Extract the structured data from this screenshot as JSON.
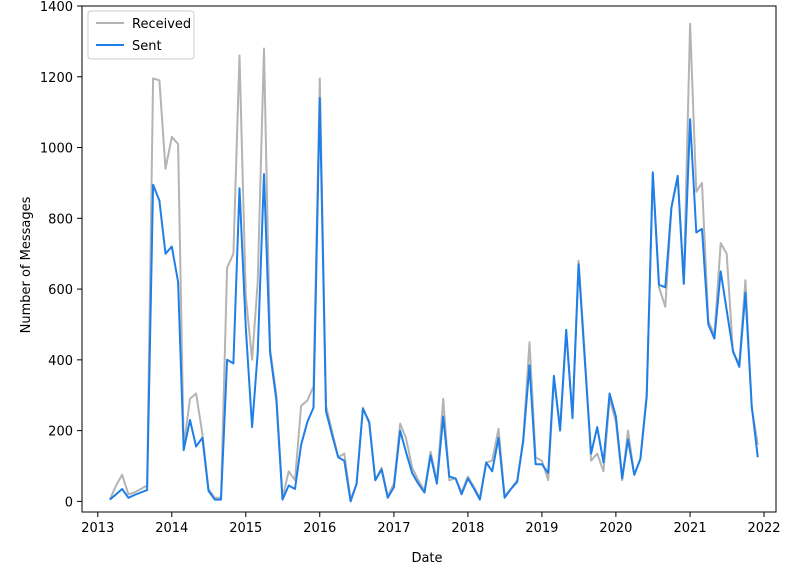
{
  "chart_data": {
    "type": "line",
    "xlabel": "Date",
    "ylabel": "Number of Messages",
    "xlim": [
      "2012-10-15",
      "2022-03-01"
    ],
    "ylim": [
      -30,
      1400
    ],
    "x_ticks": [
      "2013",
      "2014",
      "2015",
      "2016",
      "2017",
      "2018",
      "2019",
      "2020",
      "2021",
      "2022"
    ],
    "y_ticks": [
      0,
      200,
      400,
      600,
      800,
      1000,
      1200,
      1400
    ],
    "grid": false,
    "legend_position": "top-left",
    "colors": {
      "Received": "#b4b4b4",
      "Sent": "#1f7fe8"
    },
    "series": [
      {
        "name": "Received",
        "points": [
          [
            "2013-03-01",
            5
          ],
          [
            "2013-04-01",
            45
          ],
          [
            "2013-05-01",
            75
          ],
          [
            "2013-06-01",
            20
          ],
          [
            "2013-07-01",
            25
          ],
          [
            "2013-08-01",
            35
          ],
          [
            "2013-09-01",
            45
          ],
          [
            "2013-10-01",
            1195
          ],
          [
            "2013-11-01",
            1190
          ],
          [
            "2013-12-01",
            940
          ],
          [
            "2014-01-01",
            1030
          ],
          [
            "2014-02-01",
            1010
          ],
          [
            "2014-03-01",
            155
          ],
          [
            "2014-04-01",
            290
          ],
          [
            "2014-05-01",
            305
          ],
          [
            "2014-06-01",
            190
          ],
          [
            "2014-07-01",
            35
          ],
          [
            "2014-08-01",
            10
          ],
          [
            "2014-09-01",
            10
          ],
          [
            "2014-10-01",
            660
          ],
          [
            "2014-11-01",
            700
          ],
          [
            "2014-12-01",
            1260
          ],
          [
            "2015-01-01",
            580
          ],
          [
            "2015-02-01",
            400
          ],
          [
            "2015-03-01",
            620
          ],
          [
            "2015-04-01",
            1280
          ],
          [
            "2015-05-01",
            430
          ],
          [
            "2015-06-01",
            300
          ],
          [
            "2015-07-01",
            10
          ],
          [
            "2015-08-01",
            85
          ],
          [
            "2015-09-01",
            60
          ],
          [
            "2015-10-01",
            270
          ],
          [
            "2015-11-01",
            285
          ],
          [
            "2015-12-01",
            325
          ],
          [
            "2016-01-01",
            1195
          ],
          [
            "2016-02-01",
            270
          ],
          [
            "2016-03-01",
            200
          ],
          [
            "2016-04-01",
            125
          ],
          [
            "2016-05-01",
            135
          ],
          [
            "2016-06-01",
            5
          ],
          [
            "2016-07-01",
            50
          ],
          [
            "2016-08-01",
            265
          ],
          [
            "2016-09-01",
            220
          ],
          [
            "2016-10-01",
            60
          ],
          [
            "2016-11-01",
            95
          ],
          [
            "2016-12-01",
            15
          ],
          [
            "2017-01-01",
            50
          ],
          [
            "2017-02-01",
            220
          ],
          [
            "2017-03-01",
            180
          ],
          [
            "2017-04-01",
            95
          ],
          [
            "2017-05-01",
            60
          ],
          [
            "2017-06-01",
            30
          ],
          [
            "2017-07-01",
            140
          ],
          [
            "2017-08-01",
            55
          ],
          [
            "2017-09-01",
            290
          ],
          [
            "2017-10-01",
            60
          ],
          [
            "2017-11-01",
            65
          ],
          [
            "2017-12-01",
            25
          ],
          [
            "2018-01-01",
            70
          ],
          [
            "2018-02-01",
            40
          ],
          [
            "2018-03-01",
            10
          ],
          [
            "2018-04-01",
            110
          ],
          [
            "2018-05-01",
            115
          ],
          [
            "2018-06-01",
            205
          ],
          [
            "2018-07-01",
            15
          ],
          [
            "2018-08-01",
            35
          ],
          [
            "2018-09-01",
            60
          ],
          [
            "2018-10-01",
            175
          ],
          [
            "2018-11-01",
            450
          ],
          [
            "2018-12-01",
            125
          ],
          [
            "2019-01-01",
            115
          ],
          [
            "2019-02-01",
            60
          ],
          [
            "2019-03-01",
            345
          ],
          [
            "2019-04-01",
            210
          ],
          [
            "2019-05-01",
            480
          ],
          [
            "2019-06-01",
            245
          ],
          [
            "2019-07-01",
            680
          ],
          [
            "2019-08-01",
            410
          ],
          [
            "2019-09-01",
            115
          ],
          [
            "2019-10-01",
            135
          ],
          [
            "2019-11-01",
            85
          ],
          [
            "2019-12-01",
            290
          ],
          [
            "2020-01-01",
            225
          ],
          [
            "2020-02-01",
            60
          ],
          [
            "2020-03-01",
            200
          ],
          [
            "2020-04-01",
            75
          ],
          [
            "2020-05-01",
            120
          ],
          [
            "2020-06-01",
            305
          ],
          [
            "2020-07-01",
            925
          ],
          [
            "2020-08-01",
            605
          ],
          [
            "2020-09-01",
            550
          ],
          [
            "2020-10-01",
            830
          ],
          [
            "2020-11-01",
            915
          ],
          [
            "2020-12-01",
            615
          ],
          [
            "2021-01-01",
            1350
          ],
          [
            "2021-02-01",
            875
          ],
          [
            "2021-03-01",
            900
          ],
          [
            "2021-04-01",
            510
          ],
          [
            "2021-05-01",
            470
          ],
          [
            "2021-06-01",
            730
          ],
          [
            "2021-07-01",
            700
          ],
          [
            "2021-08-01",
            420
          ],
          [
            "2021-09-01",
            390
          ],
          [
            "2021-10-01",
            625
          ],
          [
            "2021-11-01",
            265
          ],
          [
            "2021-12-01",
            160
          ]
        ]
      },
      {
        "name": "Sent",
        "points": [
          [
            "2013-03-01",
            5
          ],
          [
            "2013-04-01",
            20
          ],
          [
            "2013-05-01",
            35
          ],
          [
            "2013-06-01",
            10
          ],
          [
            "2013-07-01",
            18
          ],
          [
            "2013-08-01",
            25
          ],
          [
            "2013-09-01",
            32
          ],
          [
            "2013-10-01",
            895
          ],
          [
            "2013-11-01",
            850
          ],
          [
            "2013-12-01",
            700
          ],
          [
            "2014-01-01",
            720
          ],
          [
            "2014-02-01",
            620
          ],
          [
            "2014-03-01",
            145
          ],
          [
            "2014-04-01",
            230
          ],
          [
            "2014-05-01",
            155
          ],
          [
            "2014-06-01",
            180
          ],
          [
            "2014-07-01",
            30
          ],
          [
            "2014-08-01",
            5
          ],
          [
            "2014-09-01",
            5
          ],
          [
            "2014-10-01",
            400
          ],
          [
            "2014-11-01",
            390
          ],
          [
            "2014-12-01",
            885
          ],
          [
            "2015-01-01",
            490
          ],
          [
            "2015-02-01",
            210
          ],
          [
            "2015-03-01",
            420
          ],
          [
            "2015-04-01",
            925
          ],
          [
            "2015-05-01",
            420
          ],
          [
            "2015-06-01",
            285
          ],
          [
            "2015-07-01",
            5
          ],
          [
            "2015-08-01",
            45
          ],
          [
            "2015-09-01",
            35
          ],
          [
            "2015-10-01",
            160
          ],
          [
            "2015-11-01",
            225
          ],
          [
            "2015-12-01",
            265
          ],
          [
            "2016-01-01",
            1140
          ],
          [
            "2016-02-01",
            255
          ],
          [
            "2016-03-01",
            190
          ],
          [
            "2016-04-01",
            125
          ],
          [
            "2016-05-01",
            115
          ],
          [
            "2016-06-01",
            0
          ],
          [
            "2016-07-01",
            50
          ],
          [
            "2016-08-01",
            262
          ],
          [
            "2016-09-01",
            225
          ],
          [
            "2016-10-01",
            60
          ],
          [
            "2016-11-01",
            90
          ],
          [
            "2016-12-01",
            10
          ],
          [
            "2017-01-01",
            40
          ],
          [
            "2017-02-01",
            200
          ],
          [
            "2017-03-01",
            140
          ],
          [
            "2017-04-01",
            80
          ],
          [
            "2017-05-01",
            50
          ],
          [
            "2017-06-01",
            25
          ],
          [
            "2017-07-01",
            130
          ],
          [
            "2017-08-01",
            50
          ],
          [
            "2017-09-01",
            240
          ],
          [
            "2017-10-01",
            70
          ],
          [
            "2017-11-01",
            65
          ],
          [
            "2017-12-01",
            20
          ],
          [
            "2018-01-01",
            65
          ],
          [
            "2018-02-01",
            35
          ],
          [
            "2018-03-01",
            5
          ],
          [
            "2018-04-01",
            110
          ],
          [
            "2018-05-01",
            85
          ],
          [
            "2018-06-01",
            180
          ],
          [
            "2018-07-01",
            10
          ],
          [
            "2018-08-01",
            35
          ],
          [
            "2018-09-01",
            55
          ],
          [
            "2018-10-01",
            170
          ],
          [
            "2018-11-01",
            385
          ],
          [
            "2018-12-01",
            105
          ],
          [
            "2019-01-01",
            105
          ],
          [
            "2019-02-01",
            80
          ],
          [
            "2019-03-01",
            355
          ],
          [
            "2019-04-01",
            200
          ],
          [
            "2019-05-01",
            485
          ],
          [
            "2019-06-01",
            235
          ],
          [
            "2019-07-01",
            670
          ],
          [
            "2019-08-01",
            395
          ],
          [
            "2019-09-01",
            135
          ],
          [
            "2019-10-01",
            210
          ],
          [
            "2019-11-01",
            110
          ],
          [
            "2019-12-01",
            305
          ],
          [
            "2020-01-01",
            240
          ],
          [
            "2020-02-01",
            65
          ],
          [
            "2020-03-01",
            175
          ],
          [
            "2020-04-01",
            75
          ],
          [
            "2020-05-01",
            120
          ],
          [
            "2020-06-01",
            295
          ],
          [
            "2020-07-01",
            930
          ],
          [
            "2020-08-01",
            612
          ],
          [
            "2020-09-01",
            605
          ],
          [
            "2020-10-01",
            830
          ],
          [
            "2020-11-01",
            920
          ],
          [
            "2020-12-01",
            615
          ],
          [
            "2021-01-01",
            1080
          ],
          [
            "2021-02-01",
            760
          ],
          [
            "2021-03-01",
            770
          ],
          [
            "2021-04-01",
            500
          ],
          [
            "2021-05-01",
            460
          ],
          [
            "2021-06-01",
            650
          ],
          [
            "2021-07-01",
            540
          ],
          [
            "2021-08-01",
            425
          ],
          [
            "2021-09-01",
            380
          ],
          [
            "2021-10-01",
            590
          ],
          [
            "2021-11-01",
            270
          ],
          [
            "2021-12-01",
            125
          ]
        ]
      }
    ]
  }
}
